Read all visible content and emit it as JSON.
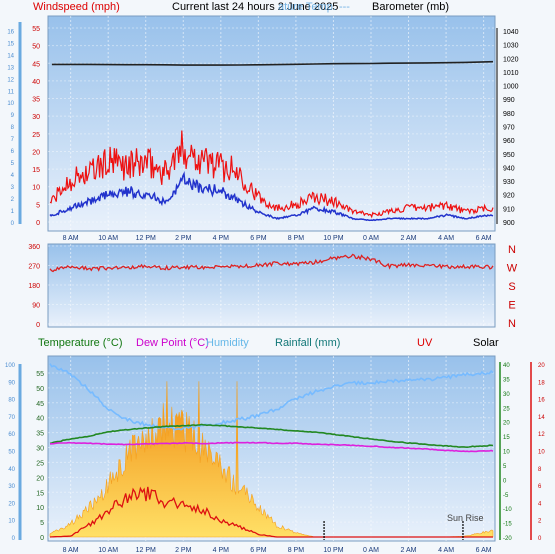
{
  "header": {
    "windspeed": "Windspeed (mph)",
    "current": "Current last 24 hours 2 June 2025",
    "overlap": "ature Temp. ---",
    "barometer": "Barometer (mb)"
  },
  "lower_header": {
    "temperature": "Temperature (°C)",
    "dewpoint": "Dew Point (°C)",
    "humidity": "Humidity",
    "rainfall": "Rainfall (mm)",
    "uv": "UV",
    "solar": "Solar"
  },
  "annotation": "Sun Rise",
  "x_ticks": [
    "8 AM",
    "10 AM",
    "12 PM",
    "2 PM",
    "4 PM",
    "6 PM",
    "8 PM",
    "10 PM",
    "0 AM",
    "2 AM",
    "4 AM",
    "6 AM"
  ],
  "colors": {
    "wind_gust": "#ee1111",
    "wind_avg": "#2233cc",
    "baro": "#222222",
    "direction": "#dd2222",
    "temperature": "#228822",
    "dewpoint": "#dd22dd",
    "humidity": "#77bbff",
    "uv": "#dd1111",
    "solar_fill": "#f4a020",
    "panel_top": "#98c1eb",
    "panel_bottom": "#e9f1fb"
  },
  "chart_data": [
    {
      "type": "line",
      "name": "wind-barometer",
      "x_hours": [
        7,
        8,
        9,
        10,
        11,
        12,
        13,
        14,
        15,
        16,
        17,
        18,
        19,
        20,
        21,
        22,
        23,
        24,
        25,
        26,
        27,
        28,
        29,
        30.5
      ],
      "series": [
        {
          "name": "Windspeed (mph)",
          "axis": "left",
          "values": [
            6,
            12,
            14,
            17,
            16,
            17,
            14,
            21,
            18,
            16,
            14,
            7,
            4,
            5,
            7,
            6,
            3,
            2,
            3,
            4,
            4,
            5,
            3,
            4
          ]
        },
        {
          "name": "Windspeed (mph)",
          "axis": "left",
          "values": [
            2,
            4,
            6,
            8,
            9,
            8,
            6,
            12,
            10,
            9,
            6,
            3,
            1,
            2,
            4,
            3,
            1,
            0.5,
            1,
            1,
            1,
            2,
            1,
            2
          ]
        },
        {
          "name": "Barometer (mb)",
          "axis": "right",
          "values": [
            1015.5,
            1015.5,
            1015.5,
            1015.4,
            1015.3,
            1015.3,
            1015.2,
            1015.0,
            1015.0,
            1015.0,
            1015.1,
            1015.2,
            1015.4,
            1015.6,
            1015.8,
            1016.0,
            1016.1,
            1016.2,
            1016.4,
            1016.5,
            1016.6,
            1016.8,
            1017.0,
            1017.5
          ]
        }
      ],
      "ylabel": "Windspeed (mph)",
      "ylim": [
        0,
        57
      ],
      "y2label": "Barometer (mb)",
      "y2lim": [
        900,
        1040
      ],
      "left_ticks": [
        0,
        5,
        10,
        15,
        20,
        25,
        30,
        35,
        40,
        45,
        50,
        55
      ],
      "left_ticks_kts": [
        0,
        1,
        2,
        3,
        4,
        5,
        6,
        7,
        8,
        9,
        10,
        11,
        12,
        13,
        14,
        15,
        16
      ],
      "right_ticks": [
        900,
        910,
        920,
        930,
        940,
        950,
        960,
        970,
        980,
        990,
        1000,
        1010,
        1020,
        1030,
        1040
      ]
    },
    {
      "type": "line",
      "name": "wind-direction",
      "x_hours": [
        7,
        8,
        9,
        10,
        11,
        12,
        13,
        14,
        15,
        16,
        17,
        18,
        19,
        20,
        21,
        22,
        23,
        24,
        25,
        26,
        27,
        28,
        29,
        30.5
      ],
      "values": [
        248,
        262,
        255,
        258,
        262,
        265,
        258,
        262,
        262,
        260,
        268,
        270,
        280,
        275,
        285,
        305,
        315,
        300,
        265,
        275,
        270,
        265,
        265,
        262
      ],
      "ylim": [
        0,
        360
      ],
      "left_ticks": [
        0,
        90,
        180,
        270,
        360
      ],
      "compass": [
        "N",
        "W",
        "S",
        "E",
        "N"
      ]
    },
    {
      "type": "area",
      "name": "temperature-solar",
      "x_hours": [
        6.9,
        8,
        9,
        10,
        11,
        12,
        13,
        14,
        15,
        16,
        17,
        18,
        19,
        20,
        21,
        22,
        23,
        24,
        25,
        26,
        27,
        28,
        29,
        30.5
      ],
      "series": [
        {
          "name": "Temperature (°C)",
          "axis": "temp",
          "values": [
            12.5,
            14.0,
            15.0,
            16.5,
            17.2,
            17.8,
            18.3,
            18.6,
            18.9,
            18.6,
            18.2,
            17.8,
            17.3,
            16.8,
            16.4,
            15.6,
            14.8,
            14.0,
            13.3,
            12.6,
            12.1,
            11.6,
            11.2,
            11.8
          ]
        },
        {
          "name": "Dew Point (°C)",
          "axis": "temp",
          "values": [
            12.4,
            12.6,
            12.5,
            12.2,
            12.1,
            12.3,
            12.4,
            12.6,
            12.4,
            12.6,
            12.7,
            12.7,
            12.5,
            12.5,
            12.2,
            12.0,
            11.8,
            11.5,
            11.1,
            10.8,
            10.5,
            10.0,
            9.7,
            9.9
          ]
        },
        {
          "name": "Humidity",
          "axis": "humidity",
          "values": [
            100,
            94,
            85,
            74,
            68,
            65,
            63,
            63,
            64,
            66,
            68,
            70,
            74,
            80,
            84,
            87,
            89,
            89,
            90,
            91,
            91,
            92,
            94,
            95
          ]
        },
        {
          "name": "Rainfall (mm)",
          "axis": "humidity",
          "values": [
            0,
            0,
            0,
            0,
            0,
            0,
            0,
            0,
            0,
            0,
            0,
            0,
            0,
            0,
            0,
            0,
            0,
            0,
            0,
            0,
            0,
            0,
            0,
            0
          ]
        },
        {
          "name": "UV",
          "axis": "uv",
          "values": [
            0,
            0.1,
            1.5,
            3.0,
            4.5,
            5.0,
            4.0,
            3.5,
            3.0,
            2.0,
            1.2,
            0.3,
            0,
            0,
            0,
            0,
            0,
            0,
            0,
            0,
            0,
            0,
            0,
            0
          ]
        },
        {
          "name": "Solar",
          "axis": "solar",
          "values": [
            20,
            80,
            180,
            310,
            480,
            620,
            700,
            650,
            540,
            420,
            300,
            180,
            70,
            25,
            0,
            0,
            0,
            0,
            0,
            0,
            0,
            0,
            5,
            40
          ]
        }
      ],
      "ylim_humidity": [
        0,
        100
      ],
      "left_ticks": [
        0,
        5,
        10,
        15,
        20,
        25,
        30,
        35,
        40,
        45,
        50,
        55
      ],
      "left_ticks_outer": [
        0,
        10,
        20,
        30,
        40,
        50,
        60,
        70,
        80,
        90,
        100
      ],
      "right_ticks_temp": [
        -20,
        -15,
        -10,
        -5,
        0,
        5,
        10,
        15,
        20,
        25,
        30,
        35,
        40
      ],
      "right_ticks_uv": [
        0,
        2,
        4,
        6,
        8,
        10,
        12,
        14,
        16,
        18,
        20
      ],
      "sunrise_hours": [
        21.5,
        28.9
      ]
    }
  ]
}
